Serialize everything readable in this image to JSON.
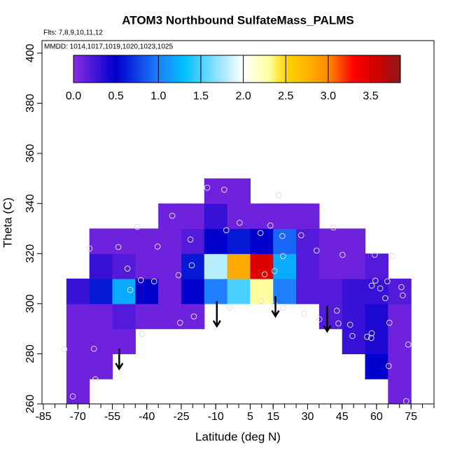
{
  "chart_data": {
    "type": "heatmap",
    "title": "ATOM3 Northbound SulfateMass_PALMS",
    "annotations": [
      "Flts: 7,8,9,10,11,12",
      "MMDD: 1014,1017,1019,1020,1023,1025"
    ],
    "xlabel": "Latitude (deg N)",
    "ylabel": "Theta (C)",
    "xlim": [
      -85,
      85
    ],
    "ylim": [
      260,
      405
    ],
    "xticks": [
      -85,
      -70,
      -55,
      -40,
      -25,
      -10,
      5,
      15,
      30,
      45,
      60,
      75
    ],
    "xminorticks": [
      -85,
      -80,
      -75,
      -70,
      -65,
      -60,
      -55,
      -50,
      -45,
      -40,
      -35,
      -30,
      -25,
      -20,
      -15,
      -10,
      -5,
      0,
      5,
      10,
      15,
      20,
      25,
      30,
      35,
      40,
      45,
      50,
      55,
      60,
      65,
      70,
      75,
      80,
      85
    ],
    "yticks": [
      260,
      280,
      300,
      320,
      340,
      360,
      380,
      400
    ],
    "x": [
      -70,
      -60,
      -50,
      -40,
      -30,
      -20,
      -10,
      0,
      10,
      20,
      30,
      40,
      50,
      60,
      70
    ],
    "y": [
      265,
      275,
      285,
      295,
      305,
      315,
      325,
      335,
      345
    ],
    "z": [
      [
        0.1,
        null,
        null,
        null,
        null,
        null,
        null,
        null,
        null,
        null,
        null,
        null,
        null,
        null,
        0.1
      ],
      [
        0.1,
        0.1,
        null,
        null,
        null,
        null,
        null,
        null,
        null,
        null,
        null,
        null,
        null,
        0.5,
        0.1
      ],
      [
        0.1,
        0.1,
        0.1,
        null,
        null,
        null,
        null,
        null,
        null,
        null,
        null,
        null,
        0.3,
        0.4,
        0.1
      ],
      [
        0.1,
        0.1,
        0.2,
        0.1,
        0.1,
        0.1,
        null,
        null,
        null,
        null,
        null,
        0.2,
        0.3,
        0.4,
        0.1
      ],
      [
        0.3,
        0.6,
        1.2,
        0.5,
        0.1,
        0.5,
        1.0,
        1.5,
        2.3,
        1.0,
        0.2,
        0.2,
        0.3,
        0.3,
        0.2
      ],
      [
        null,
        0.3,
        0.2,
        0.1,
        0.1,
        0.6,
        1.8,
        2.8,
        3.5,
        1.2,
        0.2,
        0.1,
        0.1,
        0.2,
        null
      ],
      [
        null,
        0.1,
        0.1,
        0.1,
        0.1,
        0.2,
        0.5,
        0.6,
        0.5,
        0.9,
        0.2,
        0.1,
        0.1,
        null,
        null
      ],
      [
        null,
        null,
        null,
        null,
        0.1,
        0.1,
        0.3,
        0.1,
        0.1,
        0.1,
        0.1,
        null,
        null,
        null,
        null
      ],
      [
        null,
        null,
        null,
        null,
        null,
        null,
        0.1,
        0.1,
        null,
        null,
        null,
        null,
        null,
        null,
        null
      ]
    ],
    "points": {
      "x": [
        -75.9,
        -72.2,
        -63,
        -62.4,
        -64.9,
        -52.4,
        -48.4,
        -47.2,
        -44.1,
        -42.6,
        -42,
        -36.8,
        -35.3,
        -28.9,
        -26.2,
        -25.5,
        -21,
        -20.4,
        -19.5,
        -13.7,
        -6.3,
        -5.4,
        -3.9,
        0.4,
        9.5,
        9.8,
        11.3,
        13.8,
        15.6,
        17.4,
        15.6,
        19.3,
        19.3,
        19,
        27.2,
        28.4,
        33.9,
        35.1,
        41.2,
        42.7,
        43.4,
        45.2,
        48.5,
        49.5,
        55.9,
        57.7,
        59.2,
        57.9,
        59.5,
        57.9,
        61.6,
        63.8,
        64.7,
        65.6,
        65.3,
        66.8,
        70.8,
        71.4,
        73.8,
        72.9
      ],
      "y": [
        281.8,
        263,
        282,
        269.8,
        322,
        322.6,
        314,
        305.5,
        330.7,
        309.4,
        288,
        308.9,
        322.8,
        335.1,
        311.4,
        292.4,
        325.6,
        315.3,
        294.9,
        346.3,
        345.5,
        329.3,
        298.5,
        332.3,
        328.2,
        301,
        311.7,
        331.2,
        313,
        343.2,
        299.7,
        319,
        298.3,
        327,
        327.3,
        296,
        321.2,
        293.8,
        330.4,
        297.2,
        292.1,
        319.5,
        291.6,
        287.1,
        286.8,
        286.3,
        319.5,
        307.2,
        309.2,
        288.2,
        306.1,
        302.2,
        308.9,
        292.4,
        275.1,
        318.9,
        306.6,
        303.3,
        283.7,
        261.1
      ],
      "color": "#dddddd"
    },
    "arrows": [
      {
        "x": -52,
        "y": [
          282,
          274
        ]
      },
      {
        "x": -9.5,
        "y": [
          301,
          291
        ]
      },
      {
        "x": 16,
        "y": [
          303,
          295
        ]
      },
      {
        "x": 38.5,
        "y": [
          299,
          289
        ]
      }
    ],
    "colorbar": {
      "clim": [
        0,
        3.85
      ],
      "ticks": [
        {
          "value": 0,
          "label": "0.0"
        },
        {
          "value": 0.5,
          "label": "0.5"
        },
        {
          "value": 1.0,
          "label": "1.0"
        },
        {
          "value": 1.5,
          "label": "1.5"
        },
        {
          "value": 2.0,
          "label": "2.0"
        },
        {
          "value": 2.5,
          "label": "2.5"
        },
        {
          "value": 3.0,
          "label": "3.0"
        },
        {
          "value": 3.5,
          "label": "3.5"
        }
      ],
      "colormap": [
        [
          0,
          "#8a2be2"
        ],
        [
          0.5,
          "#0000cd"
        ],
        [
          1.0,
          "#1e7fff"
        ],
        [
          1.3,
          "#00bfff"
        ],
        [
          2.0,
          "#ffffff"
        ],
        [
          2.3,
          "#ffffa0"
        ],
        [
          2.5,
          "#ffd700"
        ],
        [
          3.0,
          "#ff8c00"
        ],
        [
          3.3,
          "#ff0000"
        ],
        [
          3.6,
          "#cc0000"
        ],
        [
          3.85,
          "#8b1a1a"
        ]
      ]
    }
  }
}
